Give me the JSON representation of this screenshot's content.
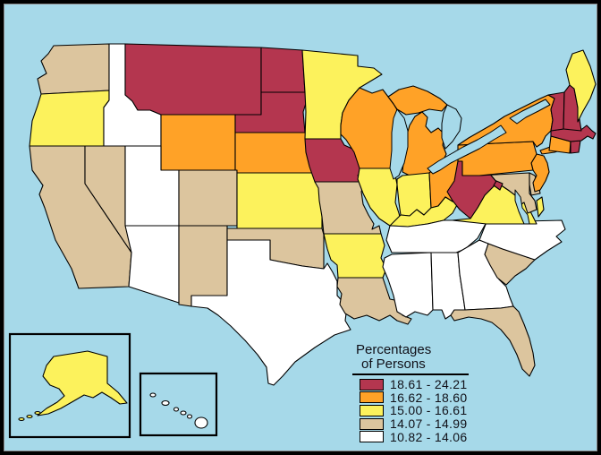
{
  "legend": {
    "title_line1": "Percentages",
    "title_line2": "of Persons",
    "items": [
      {
        "category": "c1",
        "label": "18.61 - 24.21",
        "color": "#b4364f"
      },
      {
        "category": "c2",
        "label": "16.62 - 18.60",
        "color": "#ffa227"
      },
      {
        "category": "c3",
        "label": "15.00 - 16.61",
        "color": "#fcf25c"
      },
      {
        "category": "c4",
        "label": "14.07 - 14.99",
        "color": "#dcc59e"
      },
      {
        "category": "c5",
        "label": "10.82 - 14.06",
        "color": "#ffffff"
      }
    ]
  },
  "map": {
    "water_color": "#a6d9e9",
    "border_color": "#000000",
    "state_fill_categories": {
      "WA": "c4",
      "OR": "c3",
      "CA": "c4",
      "NV": "c4",
      "ID": "c5",
      "MT": "c1",
      "WY": "c2",
      "UT": "c5",
      "CO": "c4",
      "AZ": "c5",
      "NM": "c4",
      "ND": "c1",
      "SD": "c1",
      "NE": "c2",
      "KS": "c3",
      "OK": "c4",
      "TX": "c5",
      "MN": "c3",
      "IA": "c1",
      "MO": "c4",
      "AR": "c3",
      "LA": "c4",
      "WI": "c2",
      "IL": "c3",
      "MI": "c2",
      "IN": "c3",
      "OH": "c2",
      "KY": "c3",
      "TN": "c5",
      "MS": "c5",
      "AL": "c5",
      "GA": "c5",
      "FL": "c4",
      "SC": "c4",
      "NC": "c5",
      "VA": "c3",
      "WV": "c1",
      "MD": "c4",
      "DE": "c4",
      "NJ": "c2",
      "PA": "c2",
      "NY": "c2",
      "CT": "c2",
      "RI": "c1",
      "MA": "c1",
      "VT": "c1",
      "NH": "c1",
      "ME": "c3",
      "AK": "c3",
      "HI": "c5",
      "DC": "c1"
    }
  }
}
